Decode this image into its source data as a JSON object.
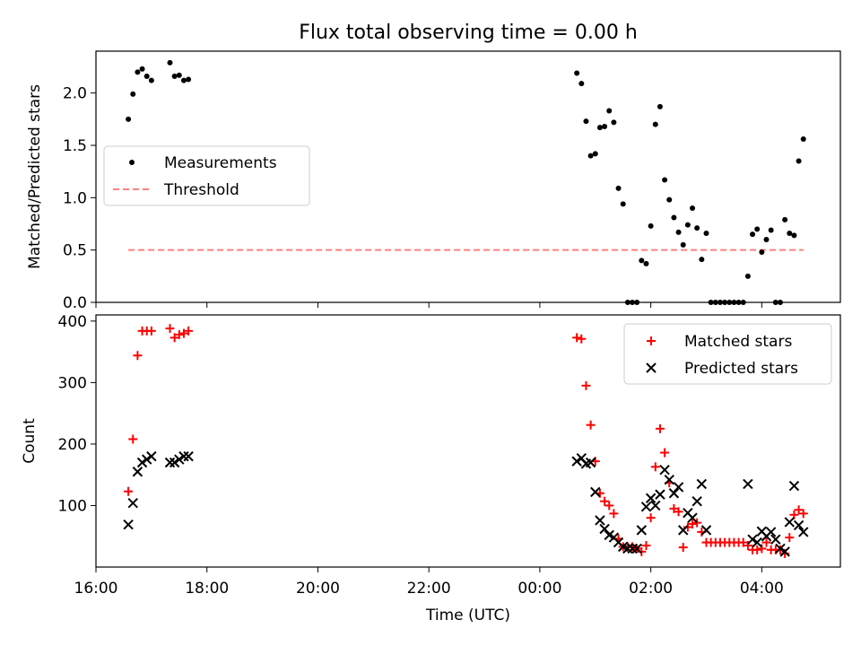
{
  "title": "Flux total observing time = 0.00 h",
  "chart_data": [
    {
      "type": "scatter",
      "ylabel": "Matched/Predicted stars",
      "xlabel": "",
      "xlim": [
        "16:00",
        "05:25"
      ],
      "ylim": [
        0,
        2.4
      ],
      "yticks": [
        "0.0",
        "0.5",
        "1.0",
        "1.5",
        "2.0"
      ],
      "legend": "center-left",
      "series": [
        {
          "name": "Measurements",
          "marker": "dot",
          "color": "#000000",
          "points": [
            [
              "16:35",
              1.75
            ],
            [
              "16:40",
              1.99
            ],
            [
              "16:45",
              2.2
            ],
            [
              "16:50",
              2.23
            ],
            [
              "16:55",
              2.16
            ],
            [
              "17:00",
              2.12
            ],
            [
              "17:20",
              2.29
            ],
            [
              "17:25",
              2.16
            ],
            [
              "17:30",
              2.17
            ],
            [
              "17:35",
              2.12
            ],
            [
              "17:40",
              2.13
            ],
            [
              "00:40",
              2.19
            ],
            [
              "00:45",
              2.09
            ],
            [
              "00:50",
              1.73
            ],
            [
              "00:55",
              1.4
            ],
            [
              "01:00",
              1.42
            ],
            [
              "01:05",
              1.67
            ],
            [
              "01:10",
              1.68
            ],
            [
              "01:15",
              1.83
            ],
            [
              "01:20",
              1.72
            ],
            [
              "01:25",
              1.09
            ],
            [
              "01:30",
              0.94
            ],
            [
              "01:35",
              0.0
            ],
            [
              "01:40",
              0.0
            ],
            [
              "01:45",
              0.0
            ],
            [
              "01:50",
              0.4
            ],
            [
              "01:55",
              0.37
            ],
            [
              "02:00",
              0.73
            ],
            [
              "02:05",
              1.7
            ],
            [
              "02:10",
              1.87
            ],
            [
              "02:15",
              1.17
            ],
            [
              "02:20",
              0.98
            ],
            [
              "02:25",
              0.81
            ],
            [
              "02:30",
              0.67
            ],
            [
              "02:35",
              0.55
            ],
            [
              "02:40",
              0.74
            ],
            [
              "02:45",
              0.9
            ],
            [
              "02:50",
              0.71
            ],
            [
              "02:55",
              0.41
            ],
            [
              "03:00",
              0.66
            ],
            [
              "03:05",
              0.0
            ],
            [
              "03:10",
              0.0
            ],
            [
              "03:15",
              0.0
            ],
            [
              "03:20",
              0.0
            ],
            [
              "03:25",
              0.0
            ],
            [
              "03:30",
              0.0
            ],
            [
              "03:35",
              0.0
            ],
            [
              "03:40",
              0.0
            ],
            [
              "03:45",
              0.25
            ],
            [
              "03:50",
              0.65
            ],
            [
              "03:55",
              0.7
            ],
            [
              "04:00",
              0.48
            ],
            [
              "04:05",
              0.6
            ],
            [
              "04:10",
              0.69
            ],
            [
              "04:15",
              0.0
            ],
            [
              "04:20",
              0.0
            ],
            [
              "04:25",
              0.79
            ],
            [
              "04:30",
              0.66
            ],
            [
              "04:35",
              0.64
            ],
            [
              "04:40",
              1.35
            ],
            [
              "04:45",
              1.56
            ]
          ]
        },
        {
          "name": "Threshold",
          "marker": "dashed-line",
          "color": "#ff7f7f",
          "x": [
            "16:35",
            "04:45"
          ],
          "y": [
            0.5,
            0.5
          ]
        }
      ]
    },
    {
      "type": "scatter",
      "ylabel": "Count",
      "xlabel": "Time (UTC)",
      "xlim": [
        "16:00",
        "05:25"
      ],
      "ylim": [
        0,
        410
      ],
      "yticks": [
        "100",
        "200",
        "300",
        "400"
      ],
      "xticks": [
        "16:00",
        "18:00",
        "20:00",
        "22:00",
        "00:00",
        "02:00",
        "04:00"
      ],
      "legend": "top-right",
      "series": [
        {
          "name": "Matched stars",
          "marker": "plus",
          "color": "#ff0000",
          "points": [
            [
              "16:35",
              123
            ],
            [
              "16:40",
              208
            ],
            [
              "16:45",
              344
            ],
            [
              "16:50",
              384
            ],
            [
              "16:55",
              384
            ],
            [
              "17:00",
              384
            ],
            [
              "17:20",
              388
            ],
            [
              "17:25",
              373
            ],
            [
              "17:30",
              378
            ],
            [
              "17:35",
              380
            ],
            [
              "17:40",
              384
            ],
            [
              "00:40",
              373
            ],
            [
              "00:45",
              371
            ],
            [
              "00:50",
              295
            ],
            [
              "00:55",
              231
            ],
            [
              "01:00",
              172
            ],
            [
              "01:05",
              120
            ],
            [
              "01:10",
              107
            ],
            [
              "01:15",
              100
            ],
            [
              "01:20",
              87
            ],
            [
              "01:25",
              46
            ],
            [
              "01:30",
              33
            ],
            [
              "01:35",
              33
            ],
            [
              "01:40",
              33
            ],
            [
              "01:45",
              30
            ],
            [
              "01:50",
              25
            ],
            [
              "01:55",
              35
            ],
            [
              "02:00",
              80
            ],
            [
              "02:05",
              163
            ],
            [
              "02:10",
              225
            ],
            [
              "02:15",
              186
            ],
            [
              "02:20",
              137
            ],
            [
              "02:25",
              95
            ],
            [
              "02:30",
              90
            ],
            [
              "02:35",
              32
            ],
            [
              "02:40",
              65
            ],
            [
              "02:45",
              70
            ],
            [
              "02:50",
              72
            ],
            [
              "02:55",
              57
            ],
            [
              "03:00",
              40
            ],
            [
              "03:05",
              40
            ],
            [
              "03:10",
              40
            ],
            [
              "03:15",
              40
            ],
            [
              "03:20",
              40
            ],
            [
              "03:25",
              40
            ],
            [
              "03:30",
              40
            ],
            [
              "03:35",
              40
            ],
            [
              "03:40",
              40
            ],
            [
              "03:45",
              35
            ],
            [
              "03:50",
              28
            ],
            [
              "03:55",
              28
            ],
            [
              "04:00",
              30
            ],
            [
              "04:05",
              40
            ],
            [
              "04:10",
              28
            ],
            [
              "04:15",
              28
            ],
            [
              "04:20",
              28
            ],
            [
              "04:25",
              22
            ],
            [
              "04:30",
              48
            ],
            [
              "04:35",
              85
            ],
            [
              "04:40",
              93
            ],
            [
              "04:45",
              87
            ]
          ]
        },
        {
          "name": "Predicted stars",
          "marker": "x",
          "color": "#000000",
          "points": [
            [
              "16:35",
              69
            ],
            [
              "16:40",
              104
            ],
            [
              "16:45",
              155
            ],
            [
              "16:50",
              170
            ],
            [
              "16:55",
              175
            ],
            [
              "17:00",
              180
            ],
            [
              "17:20",
              170
            ],
            [
              "17:25",
              170
            ],
            [
              "17:30",
              175
            ],
            [
              "17:35",
              180
            ],
            [
              "17:40",
              180
            ],
            [
              "00:40",
              172
            ],
            [
              "00:45",
              177
            ],
            [
              "00:50",
              168
            ],
            [
              "00:55",
              170
            ],
            [
              "01:00",
              122
            ],
            [
              "01:05",
              76
            ],
            [
              "01:10",
              62
            ],
            [
              "01:15",
              52
            ],
            [
              "01:20",
              48
            ],
            [
              "01:25",
              40
            ],
            [
              "01:30",
              33
            ],
            [
              "01:35",
              30
            ],
            [
              "01:40",
              30
            ],
            [
              "01:45",
              30
            ],
            [
              "01:50",
              60
            ],
            [
              "01:55",
              98
            ],
            [
              "02:00",
              112
            ],
            [
              "02:05",
              100
            ],
            [
              "02:10",
              118
            ],
            [
              "02:15",
              158
            ],
            [
              "02:20",
              142
            ],
            [
              "02:25",
              120
            ],
            [
              "02:30",
              130
            ],
            [
              "02:35",
              60
            ],
            [
              "02:40",
              88
            ],
            [
              "02:45",
              80
            ],
            [
              "02:50",
              107
            ],
            [
              "02:55",
              135
            ],
            [
              "03:00",
              60
            ],
            [
              "03:45",
              135
            ],
            [
              "03:50",
              45
            ],
            [
              "03:55",
              40
            ],
            [
              "04:00",
              58
            ],
            [
              "04:05",
              50
            ],
            [
              "04:10",
              57
            ],
            [
              "04:15",
              45
            ],
            [
              "04:20",
              30
            ],
            [
              "04:25",
              25
            ],
            [
              "04:30",
              73
            ],
            [
              "04:35",
              132
            ],
            [
              "04:40",
              68
            ],
            [
              "04:45",
              57
            ]
          ]
        }
      ]
    }
  ]
}
